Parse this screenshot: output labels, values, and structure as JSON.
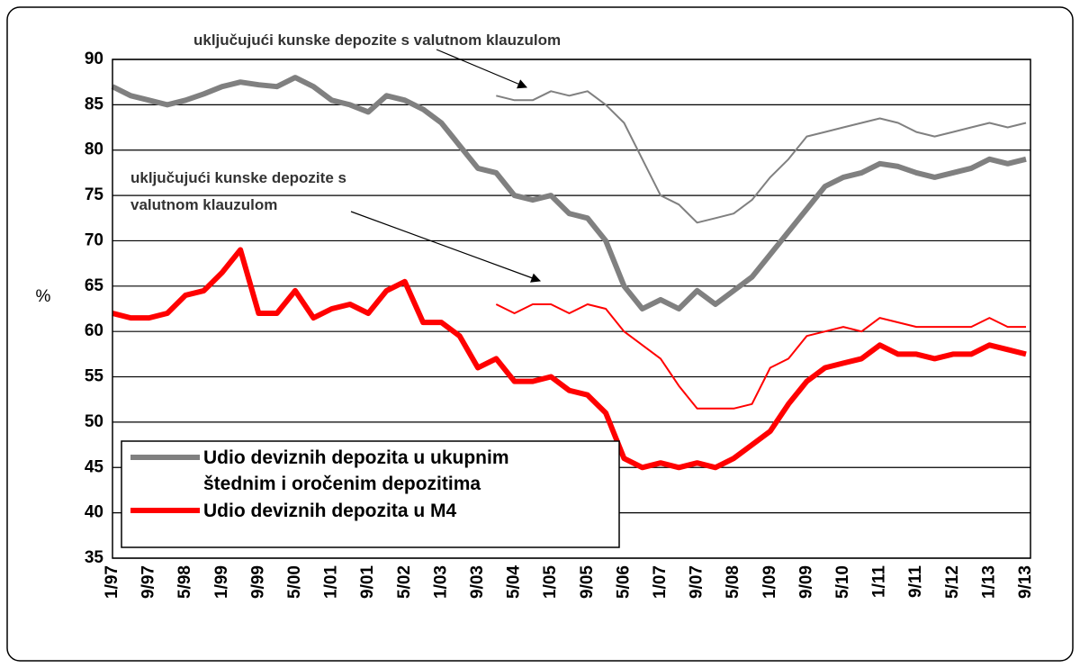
{
  "chart_data": {
    "type": "line",
    "ylabel": "%",
    "ylim": [
      35,
      90
    ],
    "yticks": [
      35,
      40,
      45,
      50,
      55,
      60,
      65,
      70,
      75,
      80,
      85,
      90
    ],
    "grid": true,
    "categories": [
      "1/97",
      null,
      "9/97",
      null,
      "5/98",
      null,
      "1/99",
      null,
      "9/99",
      null,
      "5/00",
      null,
      "1/01",
      null,
      "9/01",
      null,
      "5/02",
      null,
      "1/03",
      null,
      "9/03",
      null,
      "5/04",
      null,
      "1/05",
      null,
      "9/05",
      null,
      "5/06",
      null,
      "1/07",
      null,
      "9/07",
      null,
      "5/08",
      null,
      "1/09",
      null,
      "9/09",
      null,
      "5/10",
      null,
      "1/11",
      null,
      "9/11",
      null,
      "5/12",
      null,
      "1/13",
      null,
      "9/13"
    ],
    "series": [
      {
        "name": "Udio deviznih depozita u ukupnim štednim i oročenim depozitima",
        "color": "#808080",
        "style": "thick",
        "values": [
          87,
          86,
          85.5,
          85,
          85.5,
          86.2,
          87,
          87.5,
          87.2,
          87,
          88,
          87,
          85.5,
          85,
          84.2,
          86,
          85.5,
          84.5,
          83,
          80.5,
          78,
          77.5,
          75,
          74.5,
          75,
          73,
          72.5,
          70,
          65,
          62.5,
          63.5,
          62.5,
          64.5,
          63,
          64.5,
          66,
          68.5,
          71,
          73.5,
          76,
          77,
          77.5,
          78.5,
          78.2,
          77.5,
          77,
          77.5,
          78,
          79,
          78.5,
          79
        ]
      },
      {
        "color": "#808080",
        "style": "thin",
        "values": [
          null,
          null,
          null,
          null,
          null,
          null,
          null,
          null,
          null,
          null,
          null,
          null,
          null,
          null,
          null,
          null,
          null,
          null,
          null,
          null,
          null,
          86,
          85.5,
          85.5,
          86.5,
          86,
          86.5,
          85,
          83,
          79,
          75,
          74,
          72,
          72.5,
          73,
          74.5,
          77,
          79,
          81.5,
          82,
          82.5,
          83,
          83.5,
          83,
          82,
          81.5,
          82,
          82.5,
          83,
          82.5,
          83
        ]
      },
      {
        "name": "Udio deviznih depozita u M4",
        "color": "#ff0000",
        "style": "thick",
        "values": [
          62,
          61.5,
          61.5,
          62,
          64,
          64.5,
          66.5,
          69,
          62,
          62,
          64.5,
          61.5,
          62.5,
          63,
          62,
          64.5,
          65.5,
          61,
          61,
          59.5,
          56,
          57,
          54.5,
          54.5,
          55,
          53.5,
          53,
          51,
          46,
          45,
          45.5,
          45,
          45.5,
          45,
          46,
          47.5,
          49,
          52,
          54.5,
          56,
          56.5,
          57,
          58.5,
          57.5,
          57.5,
          57,
          57.5,
          57.5,
          58.5,
          58,
          57.5
        ]
      },
      {
        "color": "#ff0000",
        "style": "thin",
        "values": [
          null,
          null,
          null,
          null,
          null,
          null,
          null,
          null,
          null,
          null,
          null,
          null,
          null,
          null,
          null,
          null,
          null,
          null,
          null,
          null,
          null,
          63,
          62,
          63,
          63,
          62,
          63,
          62.5,
          60,
          58.5,
          57,
          54,
          51.5,
          51.5,
          51.5,
          52,
          56,
          57,
          59.5,
          60,
          60.5,
          60,
          61.5,
          61,
          60.5,
          60.5,
          60.5,
          60.5,
          61.5,
          60.5,
          60.5
        ]
      }
    ],
    "annotations": [
      "uključujući kunske depozite s valutnom klauzulom",
      "uključujući kunske depozite s valutnom klauzulom"
    ]
  }
}
